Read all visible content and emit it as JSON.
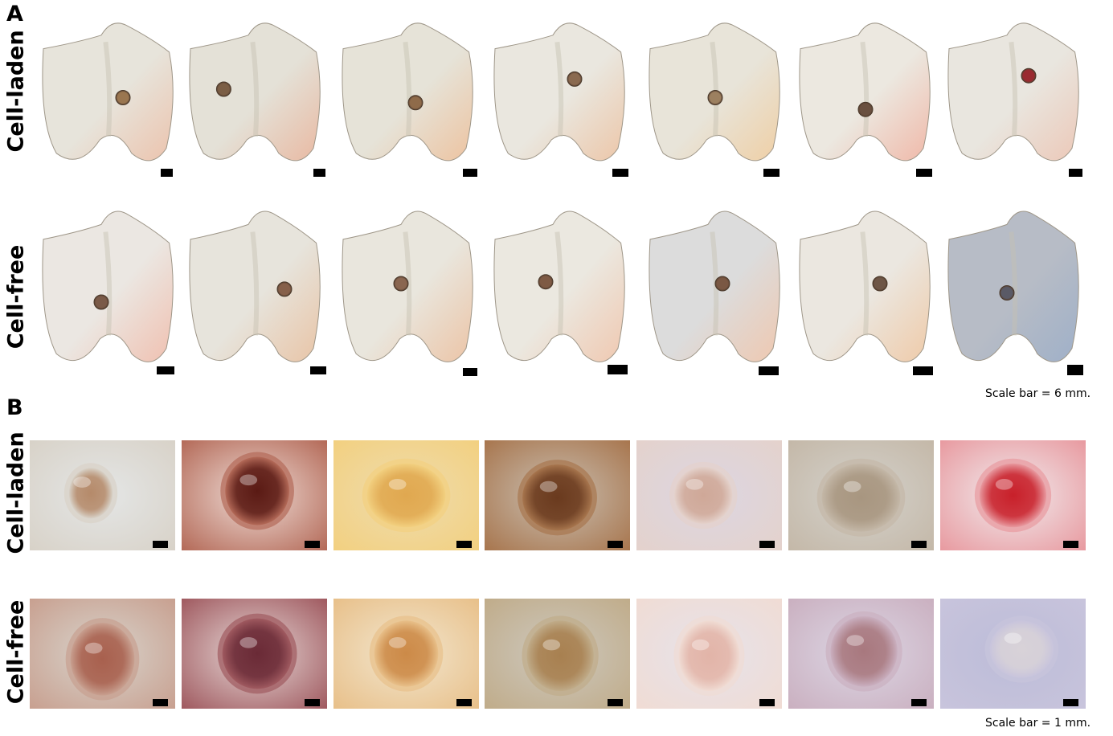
{
  "panel_a": {
    "letter": "A",
    "row_labels": [
      "Cell-laden",
      "Cell-free"
    ],
    "scale_note": "Scale bar = 6 mm."
  },
  "panel_b": {
    "letter": "B",
    "row_labels": [
      "Cell-laden",
      "Cell-free"
    ],
    "scale_note": "Scale bar = 1 mm."
  },
  "colors": {
    "cartilage": "#e9e6dc",
    "cartilage_shadow": "#b9b3a4",
    "tissue_pink": "#e8b49a",
    "defect_brown": "#8a5a3a",
    "blood_red": "#c8202a"
  },
  "specimens_a": [
    {
      "group": "cell-laden",
      "tint": "#e7e4db",
      "pink": "#ecc3ad",
      "defect": "#9a7650"
    },
    {
      "group": "cell-laden",
      "tint": "#e4e1d7",
      "pink": "#e9b9a2",
      "defect": "#7b5e45"
    },
    {
      "group": "cell-laden",
      "tint": "#e6e3d8",
      "pink": "#edc3a0",
      "defect": "#8f6b4a"
    },
    {
      "group": "cell-laden",
      "tint": "#eae7df",
      "pink": "#ecc6a8",
      "defect": "#8a6a50"
    },
    {
      "group": "cell-laden",
      "tint": "#e8e4d9",
      "pink": "#efcfa5",
      "defect": "#9c8060"
    },
    {
      "group": "cell-laden",
      "tint": "#ece8e0",
      "pink": "#f0b8a8",
      "defect": "#6a5040"
    },
    {
      "group": "cell-laden",
      "tint": "#e9e6df",
      "pink": "#ecc8b8",
      "defect": "#9a2a30"
    },
    {
      "group": "cell-free",
      "tint": "#ebe7e2",
      "pink": "#f0c0b0",
      "defect": "#7a5a48"
    },
    {
      "group": "cell-free",
      "tint": "#e7e4dc",
      "pink": "#e8c4a6",
      "defect": "#86604a"
    },
    {
      "group": "cell-free",
      "tint": "#e9e6dd",
      "pink": "#ecc4a6",
      "defect": "#8a6650"
    },
    {
      "group": "cell-free",
      "tint": "#ebe8e0",
      "pink": "#f0c8b0",
      "defect": "#7e5a44"
    },
    {
      "group": "cell-free",
      "tint": "#dcdcdc",
      "pink": "#efc8b0",
      "defect": "#7a5844"
    },
    {
      "group": "cell-free",
      "tint": "#ebe7e0",
      "pink": "#efcaa8",
      "defect": "#6e5646"
    },
    {
      "group": "cell-free",
      "tint": "#b7bcc6",
      "pink": "#9fb0c8",
      "defect": "#5a5a66"
    }
  ],
  "micrographs_b": [
    {
      "group": "cell-laden",
      "bg": "#e4e6e6",
      "core": "#b58a6a",
      "rim": "#d8d2c8"
    },
    {
      "group": "cell-laden",
      "bg": "#eedcd6",
      "core": "#5a1a14",
      "rim": "#b46a58"
    },
    {
      "group": "cell-laden",
      "bg": "#efdcae",
      "core": "#e0a850",
      "rim": "#f2d080"
    },
    {
      "group": "cell-laden",
      "bg": "#c9bfb2",
      "core": "#6a3a1e",
      "rim": "#a8764e"
    },
    {
      "group": "cell-laden",
      "bg": "#dcd6e2",
      "core": "#cfa898",
      "rim": "#e4d2cc"
    },
    {
      "group": "cell-laden",
      "bg": "#d4d2cc",
      "core": "#a89680",
      "rim": "#c4b8a8"
    },
    {
      "group": "cell-laden",
      "bg": "#f1ecee",
      "core": "#c8202a",
      "rim": "#e89aa0"
    },
    {
      "group": "cell-free",
      "bg": "#d8d4cc",
      "core": "#a8604e",
      "rim": "#c8a090"
    },
    {
      "group": "cell-free",
      "bg": "#e6d8d6",
      "core": "#6a2a36",
      "rim": "#a05a60"
    },
    {
      "group": "cell-free",
      "bg": "#f2e6ce",
      "core": "#cc8a48",
      "rim": "#e8c08a"
    },
    {
      "group": "cell-free",
      "bg": "#cdc8be",
      "core": "#a88050",
      "rim": "#c0ac8a"
    },
    {
      "group": "cell-free",
      "bg": "#e6e2ea",
      "core": "#e2b4a8",
      "rim": "#f0dcd4"
    },
    {
      "group": "cell-free",
      "bg": "#dcd6e4",
      "core": "#a8787e",
      "rim": "#cab0c0"
    },
    {
      "group": "cell-free",
      "bg": "#bcbcd8",
      "core": "#d8d2d8",
      "rim": "#c8c4dc"
    }
  ]
}
